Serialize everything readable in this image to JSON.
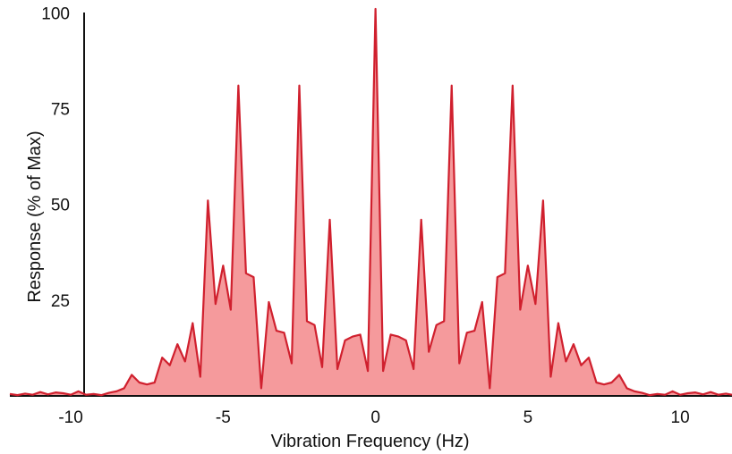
{
  "chart_data": {
    "type": "area",
    "title": "",
    "xlabel": "Vibration Frequency (Hz)",
    "ylabel": "Response (% of Max)",
    "xlim": [
      -12,
      11.7
    ],
    "ylim": [
      0,
      101
    ],
    "xticks": [
      -10,
      -5,
      0,
      5,
      10
    ],
    "yticks": [
      25,
      50,
      75,
      100
    ],
    "grid": false,
    "colors": {
      "line": "#d0202e",
      "fill": "#f59a9c",
      "axis": "#111111"
    },
    "series": [
      {
        "x": [
          -12.0,
          -11.75,
          -11.5,
          -11.25,
          -11.0,
          -10.75,
          -10.5,
          -10.25,
          -10.0,
          -9.75,
          -9.5,
          -9.25,
          -9.0,
          -8.75,
          -8.5,
          -8.25,
          -8.0,
          -7.75,
          -7.5,
          -7.25,
          -7.0,
          -6.75,
          -6.5,
          -6.25,
          -6.0,
          -5.75,
          -5.5,
          -5.25,
          -5.0,
          -4.75,
          -4.5,
          -4.25,
          -4.0,
          -3.75,
          -3.5,
          -3.25,
          -3.0,
          -2.75,
          -2.5,
          -2.25,
          -2.0,
          -1.75,
          -1.5,
          -1.25,
          -1.0,
          -0.75,
          -0.5,
          -0.25,
          0.0,
          0.25,
          0.5,
          0.75,
          1.0,
          1.25,
          1.5,
          1.75,
          2.0,
          2.25,
          2.5,
          2.75,
          3.0,
          3.25,
          3.5,
          3.75,
          4.0,
          4.25,
          4.5,
          4.75,
          5.0,
          5.25,
          5.5,
          5.75,
          6.0,
          6.25,
          6.5,
          6.75,
          7.0,
          7.25,
          7.5,
          7.75,
          8.0,
          8.25,
          8.5,
          8.75,
          9.0,
          9.25,
          9.5,
          9.75,
          10.0,
          10.25,
          10.5,
          10.75,
          11.0,
          11.25,
          11.5,
          11.7
        ],
        "y": [
          0.5,
          0.2,
          0.6,
          0.3,
          1.0,
          0.4,
          0.9,
          0.7,
          0.3,
          1.2,
          0.3,
          0.5,
          0.2,
          0.8,
          1.2,
          2.0,
          5.5,
          3.5,
          3.0,
          3.5,
          10.0,
          8.0,
          13.5,
          9.0,
          19.0,
          5.0,
          51.0,
          24.0,
          34.0,
          22.5,
          81.0,
          32.0,
          31.0,
          2.0,
          24.5,
          17.0,
          16.5,
          8.5,
          81.0,
          19.5,
          18.5,
          7.5,
          46.0,
          7.0,
          14.5,
          15.5,
          16.0,
          6.5,
          101.0,
          6.5,
          16.0,
          15.5,
          14.5,
          7.0,
          46.0,
          11.5,
          18.5,
          19.5,
          81.0,
          8.5,
          16.5,
          17.0,
          24.5,
          2.0,
          31.0,
          32.0,
          81.0,
          22.5,
          34.0,
          24.0,
          51.0,
          5.0,
          19.0,
          9.0,
          13.5,
          8.0,
          10.0,
          3.5,
          3.0,
          3.5,
          5.5,
          2.0,
          1.2,
          0.8,
          0.2,
          0.5,
          0.3,
          1.2,
          0.3,
          0.7,
          0.9,
          0.4,
          1.0,
          0.3,
          0.6,
          0.3
        ]
      }
    ]
  }
}
